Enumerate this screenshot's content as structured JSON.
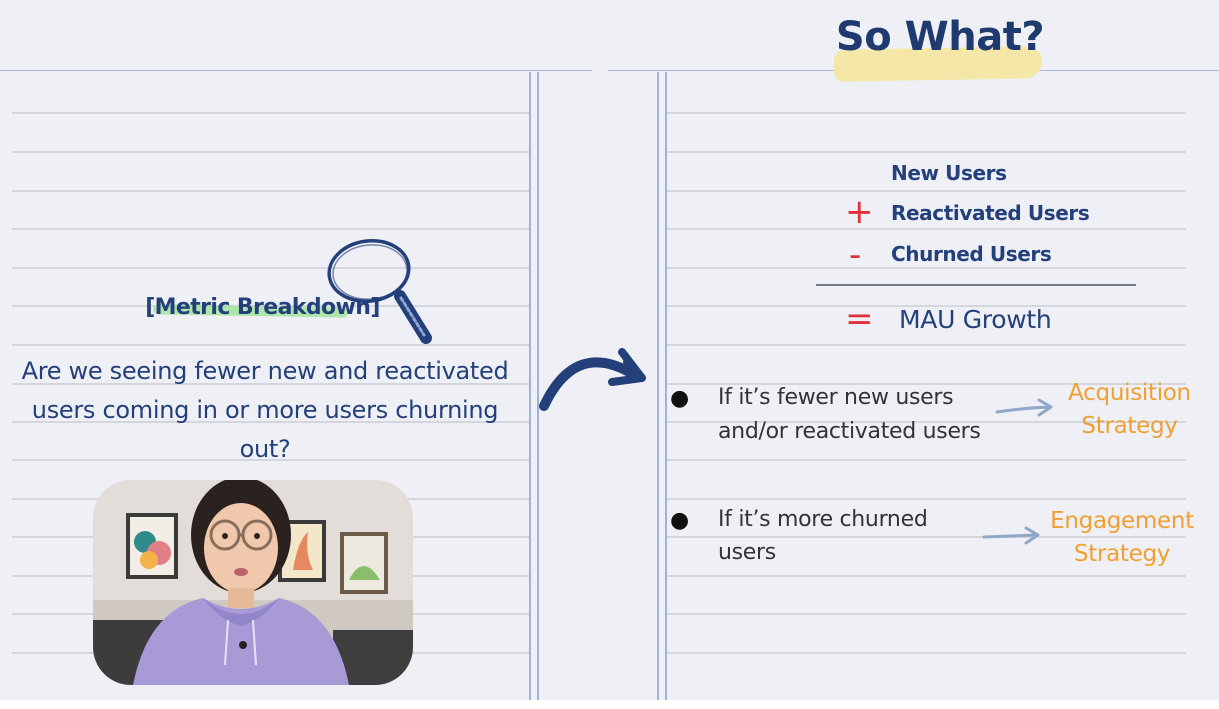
{
  "title": "So What?",
  "left": {
    "metric_header": "[Metric Breakdown]",
    "question": "Are we seeing fewer new and reactivated users coming in or more users churning out?",
    "icons": [
      "magnifier-icon"
    ],
    "video": "presenter webcam"
  },
  "right": {
    "formula": {
      "item1": "New Users",
      "op2": "+",
      "item2": "Reactivated Users",
      "op3": "-",
      "item3": "Churned Users",
      "op_result": "=",
      "result": "MAU Growth"
    },
    "bullets": [
      {
        "dot": "●",
        "line1": "If it’s fewer new users",
        "line2": "and/or reactivated users",
        "strategy1": "Acquisition",
        "strategy2": "Strategy"
      },
      {
        "dot": "●",
        "line1": "If it’s more churned",
        "line2": "users",
        "strategy1": "Engagement",
        "strategy2": "Strategy"
      }
    ]
  },
  "colors": {
    "navy": "#23407a",
    "red": "#e0313a",
    "orange": "#f0a032",
    "highlight_yellow": "#f4e6a3",
    "highlight_green": "#9ee39a",
    "background": "#eef0f5"
  }
}
